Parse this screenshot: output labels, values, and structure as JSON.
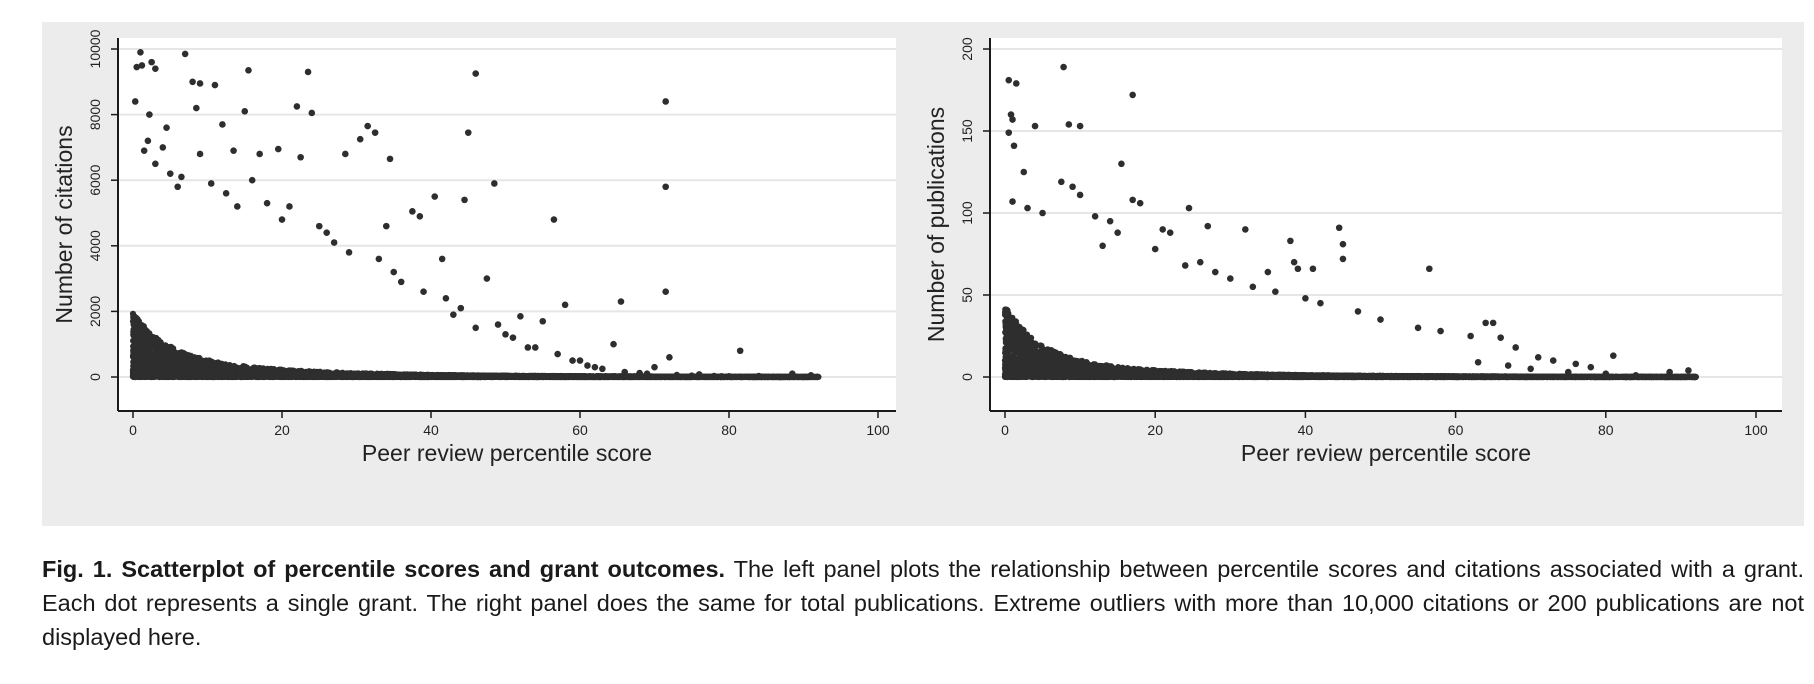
{
  "figure": {
    "caption_title": "Fig. 1. Scatterplot of percentile scores and grant outcomes.",
    "caption_body": " The left panel plots the relationship between percentile scores and citations associated with a grant. Each dot represents a single grant. The right panel does the same for total publications. Extreme outliers with more than 10,000 citations or 200 publications are not displayed here."
  },
  "colors": {
    "panel_bg": "#ececec",
    "plot_bg": "#ffffff",
    "grid": "#e6e6e6",
    "dots": "#2e2e2e",
    "axis": "#1a1a1a"
  },
  "chart_data": [
    {
      "type": "scatter",
      "xlabel": "Peer review percentile score",
      "ylabel": "Number of citations",
      "xlim": [
        0,
        100
      ],
      "ylim": [
        0,
        10000
      ],
      "xticks": [
        0,
        20,
        40,
        60,
        80,
        100
      ],
      "yticks": [
        0,
        2000,
        4000,
        6000,
        8000,
        10000
      ],
      "grid": true,
      "legend": "none",
      "points": [
        [
          1,
          9900
        ],
        [
          7,
          9850
        ],
        [
          2.5,
          9600
        ],
        [
          1.2,
          9500
        ],
        [
          3,
          9400
        ],
        [
          15.5,
          9350
        ],
        [
          23.5,
          9300
        ],
        [
          46,
          9250
        ],
        [
          0.5,
          9450
        ],
        [
          8,
          9000
        ],
        [
          9,
          8950
        ],
        [
          11,
          8900
        ],
        [
          0.3,
          8400
        ],
        [
          71.5,
          8400
        ],
        [
          8.5,
          8200
        ],
        [
          24,
          8050
        ],
        [
          22,
          8250
        ],
        [
          15,
          8100
        ],
        [
          12,
          7700
        ],
        [
          31.5,
          7650
        ],
        [
          45,
          7450
        ],
        [
          32.5,
          7450
        ],
        [
          30.5,
          7250
        ],
        [
          34.5,
          6650
        ],
        [
          22.5,
          6700
        ],
        [
          17,
          6800
        ],
        [
          28.5,
          6800
        ],
        [
          19.5,
          6950
        ],
        [
          13.5,
          6900
        ],
        [
          9,
          6800
        ],
        [
          48.5,
          5900
        ],
        [
          71.5,
          5800
        ],
        [
          40.5,
          5500
        ],
        [
          44.5,
          5400
        ],
        [
          37.5,
          5050
        ],
        [
          38.5,
          4900
        ],
        [
          56.5,
          4800
        ],
        [
          34,
          4600
        ],
        [
          41.5,
          3600
        ],
        [
          47.5,
          3000
        ],
        [
          71.5,
          2600
        ],
        [
          58,
          2200
        ],
        [
          65.5,
          2300
        ],
        [
          52,
          1850
        ],
        [
          55,
          1700
        ],
        [
          64.5,
          1000
        ],
        [
          72,
          600
        ],
        [
          81.5,
          800
        ],
        [
          88.5,
          100
        ],
        [
          91,
          50
        ],
        [
          84,
          30
        ],
        [
          79,
          20
        ],
        [
          76,
          80
        ],
        [
          68,
          120
        ],
        [
          62,
          300
        ],
        [
          59,
          500
        ],
        [
          53,
          900
        ],
        [
          50,
          1300
        ],
        [
          46,
          1500
        ],
        [
          43,
          1900
        ],
        [
          2,
          7200
        ],
        [
          3,
          6500
        ],
        [
          4,
          7000
        ],
        [
          5,
          6200
        ],
        [
          6,
          5800
        ],
        [
          1.5,
          6900
        ],
        [
          2.2,
          8000
        ],
        [
          4.5,
          7600
        ],
        [
          6.5,
          6100
        ],
        [
          10.5,
          5900
        ],
        [
          12.5,
          5600
        ],
        [
          14,
          5200
        ],
        [
          16,
          6000
        ],
        [
          18,
          5300
        ],
        [
          20,
          4800
        ],
        [
          21,
          5200
        ],
        [
          25,
          4600
        ],
        [
          26,
          4400
        ],
        [
          27,
          4100
        ],
        [
          29,
          3800
        ],
        [
          33,
          3600
        ],
        [
          35,
          3200
        ],
        [
          36,
          2900
        ],
        [
          39,
          2600
        ],
        [
          42,
          2400
        ],
        [
          44,
          2100
        ],
        [
          49,
          1600
        ],
        [
          51,
          1200
        ],
        [
          54,
          900
        ],
        [
          57,
          700
        ],
        [
          60,
          500
        ],
        [
          61,
          350
        ],
        [
          63,
          250
        ],
        [
          66,
          150
        ],
        [
          69,
          100
        ],
        [
          73,
          60
        ],
        [
          75,
          40
        ],
        [
          78,
          30
        ],
        [
          80,
          20
        ],
        [
          70,
          300
        ]
      ],
      "series_stats": [
        {
          "x0": 0,
          "x1": 100,
          "n": 2600,
          "base": 550,
          "tail": 1700,
          "decay": 18
        }
      ]
    },
    {
      "type": "scatter",
      "xlabel": "Peer review percentile score",
      "ylabel": "Number of publications",
      "xlim": [
        0,
        100
      ],
      "ylim": [
        0,
        200
      ],
      "xticks": [
        0,
        20,
        40,
        60,
        80,
        100
      ],
      "yticks": [
        0,
        50,
        100,
        150,
        200
      ],
      "grid": true,
      "legend": "none",
      "points": [
        [
          0.5,
          181
        ],
        [
          1.5,
          179
        ],
        [
          7.8,
          189
        ],
        [
          17,
          172
        ],
        [
          0.8,
          160
        ],
        [
          1,
          157
        ],
        [
          4,
          153
        ],
        [
          8.5,
          154
        ],
        [
          10,
          153
        ],
        [
          0.5,
          149
        ],
        [
          1.2,
          141
        ],
        [
          15.5,
          130
        ],
        [
          2.5,
          125
        ],
        [
          7.5,
          119
        ],
        [
          9,
          116
        ],
        [
          10,
          111
        ],
        [
          17,
          108
        ],
        [
          18,
          106
        ],
        [
          24.5,
          103
        ],
        [
          1,
          107
        ],
        [
          44.5,
          91
        ],
        [
          32,
          90
        ],
        [
          38,
          83
        ],
        [
          45,
          81
        ],
        [
          45,
          72
        ],
        [
          38.5,
          70
        ],
        [
          39,
          66
        ],
        [
          41,
          66
        ],
        [
          56.5,
          66
        ],
        [
          35,
          64
        ],
        [
          27,
          92
        ],
        [
          22,
          88
        ],
        [
          21,
          90
        ],
        [
          20,
          78
        ],
        [
          13,
          80
        ],
        [
          12,
          98
        ],
        [
          14,
          95
        ],
        [
          15,
          88
        ],
        [
          3,
          103
        ],
        [
          5,
          100
        ],
        [
          30,
          60
        ],
        [
          28,
          64
        ],
        [
          26,
          70
        ],
        [
          24,
          68
        ],
        [
          33,
          55
        ],
        [
          36,
          52
        ],
        [
          40,
          48
        ],
        [
          42,
          45
        ],
        [
          47,
          40
        ],
        [
          50,
          35
        ],
        [
          55,
          30
        ],
        [
          58,
          28
        ],
        [
          62,
          25
        ],
        [
          64,
          33
        ],
        [
          65,
          33
        ],
        [
          66,
          24
        ],
        [
          68,
          18
        ],
        [
          71,
          12
        ],
        [
          73,
          10
        ],
        [
          76,
          8
        ],
        [
          78,
          6
        ],
        [
          81,
          13
        ],
        [
          84,
          1
        ],
        [
          88.5,
          3
        ],
        [
          91,
          4
        ],
        [
          80,
          2
        ],
        [
          75,
          3
        ],
        [
          70,
          5
        ],
        [
          67,
          7
        ],
        [
          63,
          9
        ]
      ],
      "series_stats": [
        {
          "x0": 0,
          "x1": 100,
          "n": 2600,
          "base": 11,
          "tail": 38,
          "decay": 17
        }
      ]
    }
  ]
}
